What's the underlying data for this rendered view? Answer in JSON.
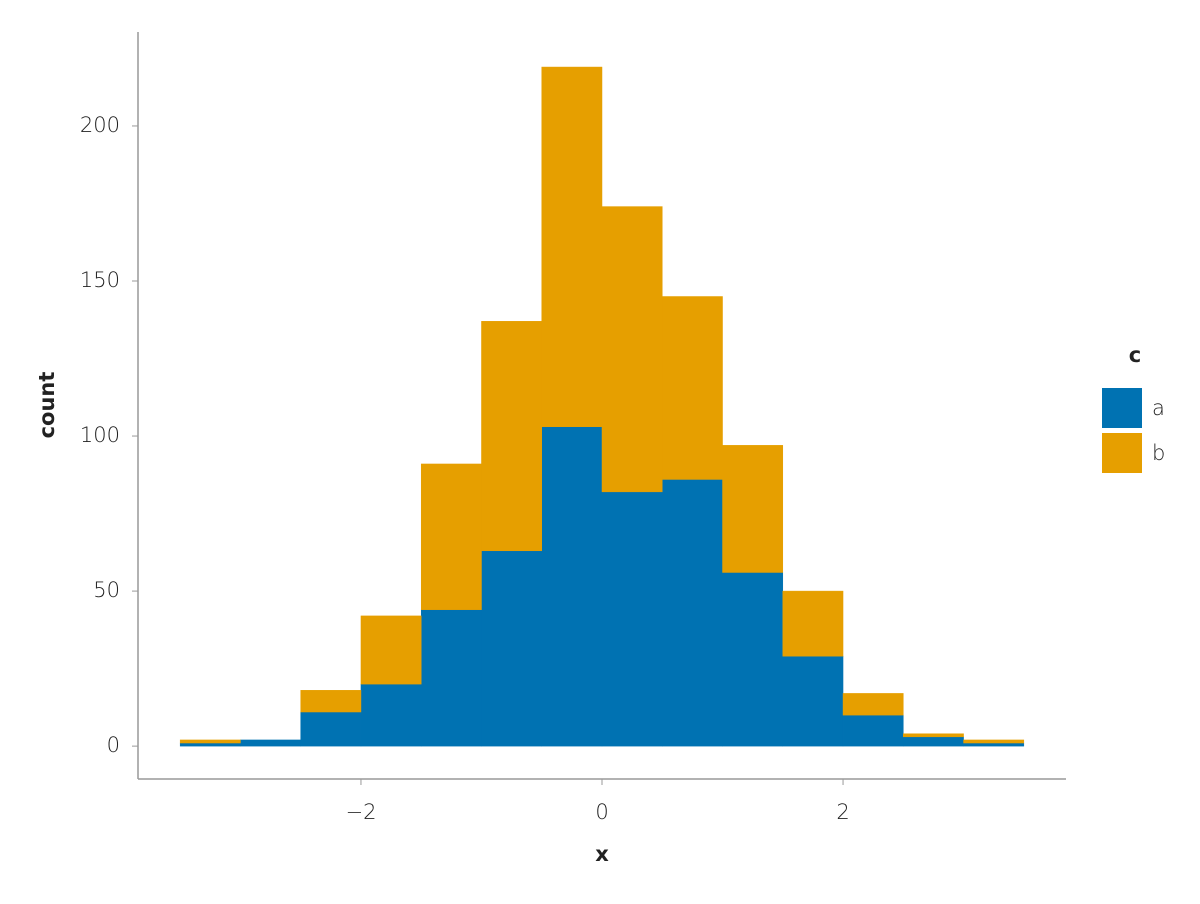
{
  "chart_data": {
    "type": "histogram",
    "x_label": "x",
    "y_label": "count",
    "bins": [
      -3.5,
      -3,
      -2.5,
      -2,
      -1.5,
      -1,
      -0.5,
      0,
      0.5,
      1,
      1.5,
      2,
      2.5,
      3,
      3.5
    ],
    "stacked": true,
    "series": [
      {
        "name": "a",
        "color": "#0072b2",
        "values": [
          1,
          2,
          11,
          20,
          44,
          63,
          103,
          82,
          86,
          56,
          29,
          10,
          3,
          1
        ]
      },
      {
        "name": "b",
        "color": "#e69f00",
        "values": [
          1,
          0,
          7,
          22,
          47,
          74,
          116,
          92,
          59,
          41,
          21,
          7,
          1,
          1
        ]
      }
    ],
    "legend_title": "c",
    "legend": "right",
    "xlim": [
      -3.85,
      3.85
    ],
    "ylim": [
      -10.6,
      230.3
    ],
    "xticks": [
      {
        "value": -2,
        "label": "−2"
      },
      0,
      2
    ],
    "yticks": [
      0,
      50,
      100,
      150,
      200
    ],
    "grid": false
  }
}
